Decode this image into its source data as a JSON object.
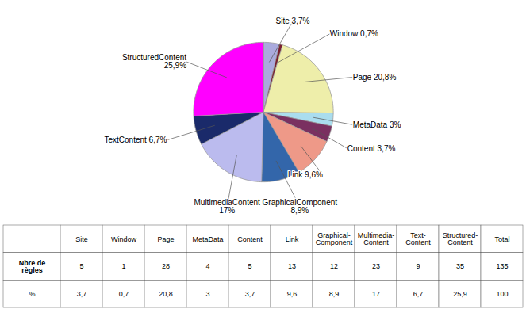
{
  "chart_data": {
    "type": "pie",
    "categories": [
      "Site",
      "Window",
      "Page",
      "MetaData",
      "Content",
      "Link",
      "GraphicalComponent",
      "MultimediaContent",
      "TextContent",
      "StructuredContent"
    ],
    "values": [
      3.7,
      0.7,
      20.8,
      3.0,
      3.7,
      9.6,
      8.9,
      17.0,
      6.7,
      25.9
    ],
    "colors": [
      "#aaaadd",
      "#7a2030",
      "#eeeeaa",
      "#aaddee",
      "#7a3060",
      "#ee9988",
      "#3366aa",
      "#bbbbee",
      "#1a2a6a",
      "#ff00ff"
    ],
    "value_labels": [
      "Site 3,7%",
      "Window 0,7%",
      "Page 20,8%",
      "MetaData 3%",
      "Content 3,7%",
      "Link 9,6%",
      "GraphicalComponent\n8,9%",
      "MultimediaContent\n17%",
      "TextContent 6,7%",
      "StructuredContent\n25,9%"
    ],
    "table": {
      "columns": [
        null,
        "Site",
        "Window",
        "Page",
        "MetaData",
        "Content",
        "Link",
        "Graphical-\nComponent",
        "Multimedia-\nContent",
        "Text-\nContent",
        "Structured-\nContent",
        "Total"
      ],
      "rows": [
        {
          "label": "Nbre de\nrègles",
          "values": [
            "5",
            "1",
            "28",
            "4",
            "5",
            "13",
            "12",
            "23",
            "9",
            "35",
            "135"
          ]
        },
        {
          "label": "%",
          "values": [
            "3,7",
            "0,7",
            "20,8",
            "3",
            "3,7",
            "9,6",
            "8,9",
            "17",
            "6,7",
            "25,9",
            "100"
          ]
        }
      ]
    }
  }
}
